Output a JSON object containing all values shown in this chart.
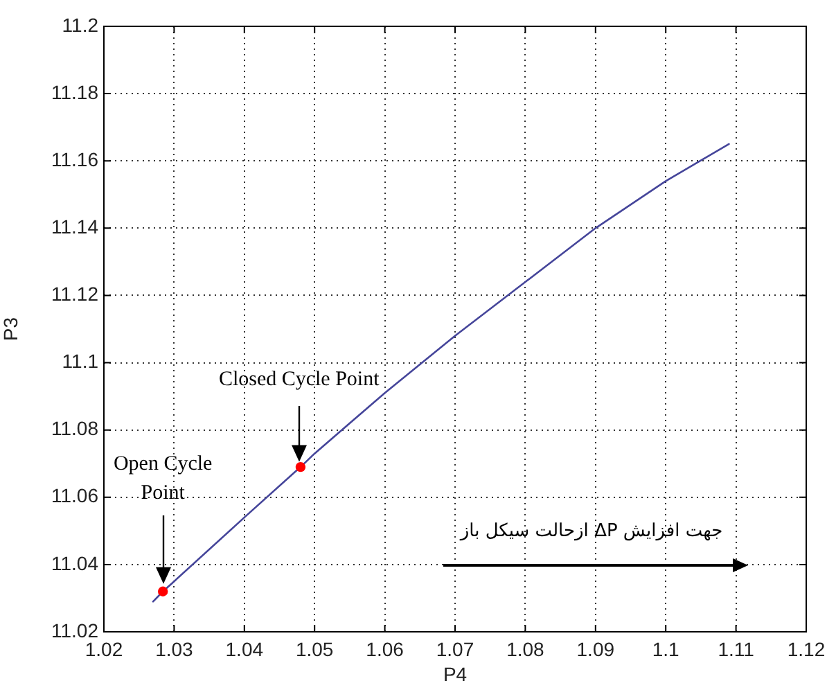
{
  "chart_data": {
    "type": "line",
    "xlabel": "P4",
    "ylabel": "P3",
    "xlim": [
      1.02,
      1.12
    ],
    "ylim": [
      11.02,
      11.2
    ],
    "xticks": [
      1.02,
      1.03,
      1.04,
      1.05,
      1.06,
      1.07,
      1.08,
      1.09,
      1.1,
      1.11,
      1.12
    ],
    "yticks": [
      11.02,
      11.04,
      11.06,
      11.08,
      11.1,
      11.12,
      11.14,
      11.16,
      11.18,
      11.2
    ],
    "grid": true,
    "series": [
      {
        "color": "#45459a",
        "x": [
          1.027,
          1.0284,
          1.03,
          1.04,
          1.048,
          1.05,
          1.06,
          1.07,
          1.08,
          1.09,
          1.1,
          1.109
        ],
        "values": [
          11.029,
          11.032,
          11.035,
          11.054,
          11.069,
          11.073,
          11.091,
          11.108,
          11.124,
          11.14,
          11.154,
          11.165
        ]
      },
      {
        "type": "scatter",
        "color": "#ff0000",
        "marker": "circle",
        "x": [
          1.0284,
          1.048
        ],
        "values": [
          11.032,
          11.069
        ]
      }
    ],
    "annotations": [
      "Closed Cycle Point",
      "Open Cycle Point",
      "جهت افزایش ΔP ازحالت سیکل باز"
    ]
  }
}
